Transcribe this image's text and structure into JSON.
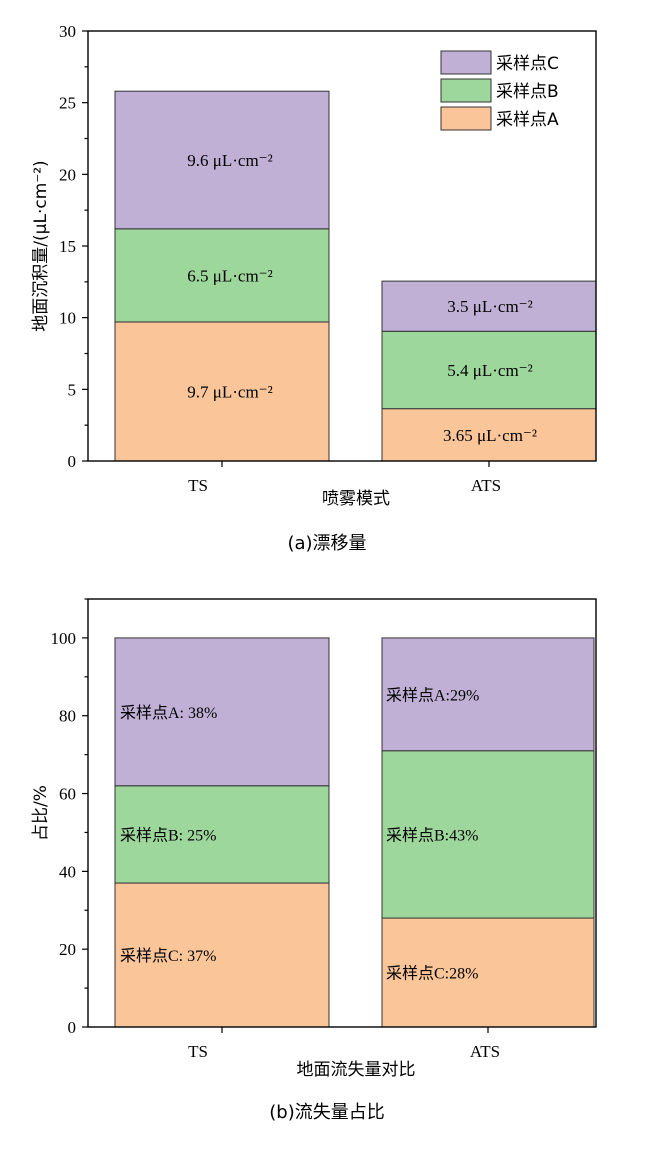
{
  "chart_data": [
    {
      "type": "bar",
      "stacked": true,
      "categories": [
        "TS",
        "ATS"
      ],
      "xlabel": "喷雾模式",
      "ylabel": "地面沉积量/(μL·cm⁻²)",
      "caption": "(a)漂移量",
      "ylim": [
        0,
        30
      ],
      "yticks": [
        "0",
        "5",
        "10",
        "15",
        "20",
        "25",
        "30"
      ],
      "legend_position": "top-right",
      "legend": [
        "采样点C",
        "采样点B",
        "采样点A"
      ],
      "series": [
        {
          "name": "采样点A",
          "color": "#f9c599",
          "values": [
            9.7,
            3.65
          ],
          "labels": [
            "9.7 μL·cm⁻²",
            "3.65 μL·cm⁻²"
          ]
        },
        {
          "name": "采样点B",
          "color": "#9dd79b",
          "values": [
            6.5,
            5.4
          ],
          "labels": [
            "6.5 μL·cm⁻²",
            "5.4 μL·cm⁻²"
          ]
        },
        {
          "name": "采样点C",
          "color": "#c1b0d6",
          "values": [
            9.6,
            3.5
          ],
          "labels": [
            "9.6 μL·cm⁻²",
            "3.5 μL·cm⁻²"
          ]
        }
      ]
    },
    {
      "type": "bar",
      "stacked": true,
      "categories": [
        "TS",
        "ATS"
      ],
      "xlabel": "地面流失量对比",
      "ylabel": "占比/%",
      "caption": "(b)流失量占比",
      "ylim": [
        0,
        110
      ],
      "yticks": [
        "0",
        "20",
        "40",
        "60",
        "80",
        "100"
      ],
      "series": [
        {
          "color": "#f9c599",
          "values": [
            37,
            28
          ],
          "labels": [
            "采样点C: 37%",
            "采样点C:28%"
          ]
        },
        {
          "color": "#9dd79b",
          "values": [
            25,
            43
          ],
          "labels": [
            "采样点B: 25%",
            "采样点B:43%"
          ]
        },
        {
          "color": "#c1b0d6",
          "values": [
            38,
            29
          ],
          "labels": [
            "采样点A: 38%",
            "采样点A:29%"
          ]
        }
      ]
    }
  ]
}
